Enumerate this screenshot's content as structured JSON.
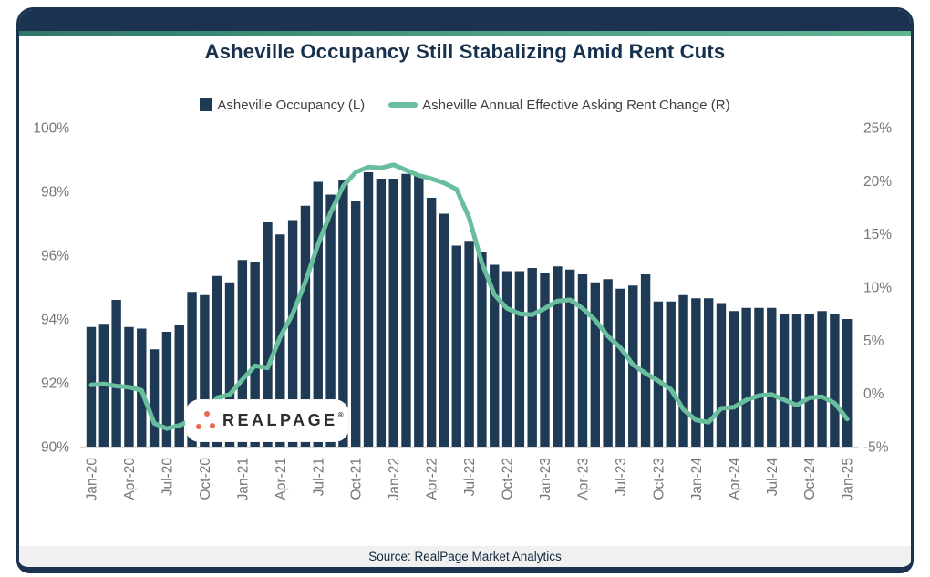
{
  "title": "Asheville Occupancy Still Stabalizing Amid Rent Cuts",
  "legend": [
    {
      "label": "Asheville Occupancy (L)",
      "swatch": "navy-square",
      "color": "#1f3a54"
    },
    {
      "label": "Asheville Annual Effective Asking Rent Change (R)",
      "swatch": "green-line",
      "color": "#68be9d"
    }
  ],
  "source": {
    "text": "Source: RealPage Market Analytics"
  },
  "logo": {
    "text": "REALPAGE",
    "mark": "®",
    "dot_color": "#e9684a"
  },
  "colors": {
    "bar": "#1f3a54",
    "line": "#68be9d",
    "header_navy": "#1b3350",
    "accent_teal": "#4da083",
    "axis_text": "#767676",
    "baseline": "#d9d9d9",
    "title_navy": "#16304d"
  },
  "chart_data": {
    "type": "bar+line combo",
    "title": "Asheville Occupancy Still Stabalizing Amid Rent Cuts",
    "months": [
      "Jan-20",
      "Feb-20",
      "Mar-20",
      "Apr-20",
      "May-20",
      "Jun-20",
      "Jul-20",
      "Aug-20",
      "Sep-20",
      "Oct-20",
      "Nov-20",
      "Dec-20",
      "Jan-21",
      "Feb-21",
      "Mar-21",
      "Apr-21",
      "May-21",
      "Jun-21",
      "Jul-21",
      "Aug-21",
      "Sep-21",
      "Oct-21",
      "Nov-21",
      "Dec-21",
      "Jan-22",
      "Feb-22",
      "Mar-22",
      "Apr-22",
      "May-22",
      "Jun-22",
      "Jul-22",
      "Aug-22",
      "Sep-22",
      "Oct-22",
      "Nov-22",
      "Dec-22",
      "Jan-23",
      "Feb-23",
      "Mar-23",
      "Apr-23",
      "May-23",
      "Jun-23",
      "Jul-23",
      "Aug-23",
      "Sep-23",
      "Oct-23",
      "Nov-23",
      "Dec-23",
      "Jan-24",
      "Feb-24",
      "Mar-24",
      "Apr-24",
      "May-24",
      "Jun-24",
      "Jul-24",
      "Aug-24",
      "Sep-24",
      "Oct-24",
      "Nov-24",
      "Dec-24",
      "Jan-25"
    ],
    "x_tick_every": 3,
    "x_ticks_shown": [
      "Jan-20",
      "Apr-20",
      "Jul-20",
      "Oct-20",
      "Jan-21",
      "Apr-21",
      "Jul-21",
      "Oct-21",
      "Jan-22",
      "Apr-22",
      "Jul-22",
      "Oct-22",
      "Jan-23",
      "Apr-23",
      "Jul-23",
      "Oct-23",
      "Jan-24",
      "Apr-24",
      "Jul-24",
      "Oct-24",
      "Jan-25"
    ],
    "series": [
      {
        "name": "Asheville Occupancy (L)",
        "type": "bar",
        "axis": "left",
        "color": "#1f3a54",
        "unit": "%",
        "values": [
          93.75,
          93.85,
          94.6,
          93.75,
          93.7,
          93.05,
          93.6,
          93.8,
          94.85,
          94.75,
          95.35,
          95.15,
          95.85,
          95.8,
          97.05,
          96.65,
          97.1,
          97.55,
          98.3,
          97.9,
          98.35,
          97.7,
          98.6,
          98.4,
          98.4,
          98.55,
          98.5,
          97.8,
          97.3,
          96.3,
          96.45,
          96.1,
          95.7,
          95.5,
          95.5,
          95.6,
          95.45,
          95.65,
          95.55,
          95.4,
          95.15,
          95.25,
          94.95,
          95.05,
          95.4,
          94.55,
          94.55,
          94.75,
          94.65,
          94.65,
          94.5,
          94.25,
          94.35,
          94.35,
          94.35,
          94.15,
          94.15,
          94.15,
          94.25,
          94.15,
          94.0
        ]
      },
      {
        "name": "Asheville Annual Effective Asking Rent Change (R)",
        "type": "line",
        "axis": "right",
        "color": "#68be9d",
        "unit": "%",
        "values": [
          0.8,
          0.9,
          0.7,
          0.6,
          0.3,
          -2.8,
          -3.3,
          -3.0,
          -2.5,
          -1.9,
          -0.4,
          -0.1,
          1.3,
          2.6,
          2.4,
          5.3,
          7.5,
          10.5,
          14.0,
          17.0,
          19.5,
          20.8,
          21.3,
          21.2,
          21.5,
          21.0,
          20.5,
          20.2,
          19.8,
          19.2,
          16.5,
          12.3,
          9.3,
          8.0,
          7.5,
          7.4,
          8.0,
          8.7,
          8.8,
          8.0,
          6.9,
          5.4,
          4.3,
          2.7,
          1.9,
          1.2,
          0.4,
          -1.5,
          -2.5,
          -2.7,
          -1.4,
          -1.3,
          -0.6,
          -0.2,
          -0.1,
          -0.6,
          -1.1,
          -0.4,
          -0.3,
          -0.9,
          -2.4
        ]
      }
    ],
    "left_axis": {
      "min": 90,
      "max": 100,
      "tick_values": [
        100,
        98,
        96,
        94,
        92,
        90
      ],
      "tick_labels": [
        "100%",
        "98%",
        "96%",
        "94%",
        "92%",
        "90%"
      ]
    },
    "right_axis": {
      "min": -5,
      "max": 25,
      "tick_values": [
        25,
        20,
        15,
        10,
        5,
        0,
        -5
      ],
      "tick_labels": [
        "25%",
        "20%",
        "15%",
        "10%",
        "5%",
        "0%",
        "-5%"
      ]
    },
    "grid": false,
    "legend_position": "top-center"
  }
}
